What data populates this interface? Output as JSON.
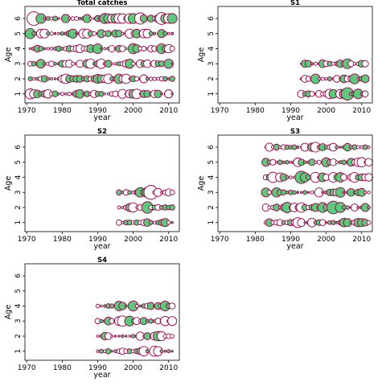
{
  "chart_data": [
    {
      "type": "bubble",
      "title": "Total catches",
      "xlabel": "year",
      "ylabel": "Age",
      "xlim": [
        1969.5,
        2013
      ],
      "ylim": [
        0.4,
        6.8
      ],
      "xticks": [
        1970,
        1980,
        1990,
        2000,
        2010
      ],
      "yticks": [
        1,
        2,
        3,
        4,
        5,
        6
      ],
      "ages": [
        1,
        2,
        3,
        4,
        5,
        6
      ],
      "year_range": [
        1971,
        2011
      ],
      "marker_legend": {
        "positive_color": "#5ec87c",
        "negative_color": "#ffffff",
        "edge_color": "#9b0047"
      }
    },
    {
      "type": "bubble",
      "title": "S1",
      "xlabel": "year",
      "ylabel": "Age",
      "xlim": [
        1969.5,
        2013
      ],
      "ylim": [
        0.4,
        6.8
      ],
      "xticks": [
        1970,
        1980,
        1990,
        2000,
        2010
      ],
      "yticks": [
        1,
        2,
        3,
        4,
        5,
        6
      ],
      "ages": [
        1,
        2,
        3
      ],
      "year_range": [
        1993,
        2011
      ]
    },
    {
      "type": "bubble",
      "title": "S2",
      "xlabel": "year",
      "ylabel": "Age",
      "xlim": [
        1969.5,
        2013
      ],
      "ylim": [
        0.4,
        6.8
      ],
      "xticks": [
        1970,
        1980,
        1990,
        2000,
        2010
      ],
      "yticks": [
        1,
        2,
        3,
        4,
        5,
        6
      ],
      "ages": [
        1,
        2,
        3
      ],
      "year_range": [
        1996,
        2011
      ]
    },
    {
      "type": "bubble",
      "title": "S3",
      "xlabel": "year",
      "ylabel": "Age",
      "xlim": [
        1969.5,
        2013
      ],
      "ylim": [
        0.4,
        6.8
      ],
      "xticks": [
        1970,
        1980,
        1990,
        2000,
        2010
      ],
      "yticks": [
        1,
        2,
        3,
        4,
        5,
        6
      ],
      "ages": [
        1,
        2,
        3,
        4,
        5,
        6
      ],
      "year_range": [
        1983,
        2012
      ]
    },
    {
      "type": "bubble",
      "title": "S4",
      "xlabel": "year",
      "ylabel": "Age",
      "xlim": [
        1969.5,
        2013
      ],
      "ylim": [
        0.4,
        6.8
      ],
      "xticks": [
        1970,
        1980,
        1990,
        2000,
        2010
      ],
      "yticks": [
        1,
        2,
        3,
        4,
        5,
        6
      ],
      "ages": [
        1,
        2,
        3,
        4
      ],
      "year_range": [
        1990,
        2011
      ]
    }
  ]
}
